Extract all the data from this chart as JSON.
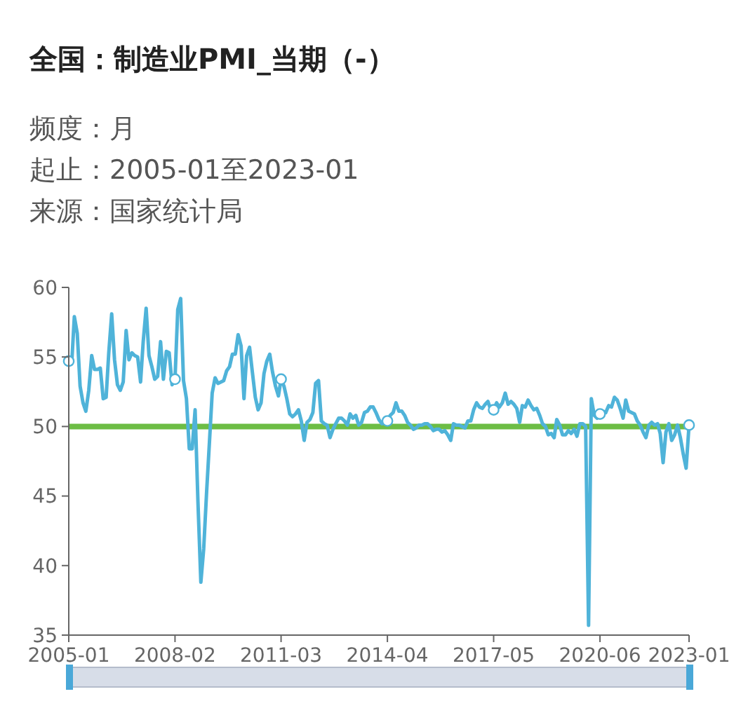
{
  "chart_data": {
    "type": "line",
    "title": "全国：制造业PMI_当期（-）",
    "subtitle": "频度：月",
    "annotations": [
      "起止：2005-01至2023-01",
      "来源：国家统计局"
    ],
    "x": [
      "2005-01",
      "2005-02",
      "2005-03",
      "2005-04",
      "2005-05",
      "2005-06",
      "2005-07",
      "2005-08",
      "2005-09",
      "2005-10",
      "2005-11",
      "2005-12",
      "2006-01",
      "2006-02",
      "2006-03",
      "2006-04",
      "2006-05",
      "2006-06",
      "2006-07",
      "2006-08",
      "2006-09",
      "2006-10",
      "2006-11",
      "2006-12",
      "2007-01",
      "2007-02",
      "2007-03",
      "2007-04",
      "2007-05",
      "2007-06",
      "2007-07",
      "2007-08",
      "2007-09",
      "2007-10",
      "2007-11",
      "2007-12",
      "2008-01",
      "2008-02",
      "2008-03",
      "2008-04",
      "2008-05",
      "2008-06",
      "2008-07",
      "2008-08",
      "2008-09",
      "2008-10",
      "2008-11",
      "2008-12",
      "2009-01",
      "2009-02",
      "2009-03",
      "2009-04",
      "2009-05",
      "2009-06",
      "2009-07",
      "2009-08",
      "2009-09",
      "2009-10",
      "2009-11",
      "2009-12",
      "2010-01",
      "2010-02",
      "2010-03",
      "2010-04",
      "2010-05",
      "2010-06",
      "2010-07",
      "2010-08",
      "2010-09",
      "2010-10",
      "2010-11",
      "2010-12",
      "2011-01",
      "2011-02",
      "2011-03",
      "2011-04",
      "2011-05",
      "2011-06",
      "2011-07",
      "2011-08",
      "2011-09",
      "2011-10",
      "2011-11",
      "2011-12",
      "2012-01",
      "2012-02",
      "2012-03",
      "2012-04",
      "2012-05",
      "2012-06",
      "2012-07",
      "2012-08",
      "2012-09",
      "2012-10",
      "2012-11",
      "2012-12",
      "2013-01",
      "2013-02",
      "2013-03",
      "2013-04",
      "2013-05",
      "2013-06",
      "2013-07",
      "2013-08",
      "2013-09",
      "2013-10",
      "2013-11",
      "2013-12",
      "2014-01",
      "2014-02",
      "2014-03",
      "2014-04",
      "2014-05",
      "2014-06",
      "2014-07",
      "2014-08",
      "2014-09",
      "2014-10",
      "2014-11",
      "2014-12",
      "2015-01",
      "2015-02",
      "2015-03",
      "2015-04",
      "2015-05",
      "2015-06",
      "2015-07",
      "2015-08",
      "2015-09",
      "2015-10",
      "2015-11",
      "2015-12",
      "2016-01",
      "2016-02",
      "2016-03",
      "2016-04",
      "2016-05",
      "2016-06",
      "2016-07",
      "2016-08",
      "2016-09",
      "2016-10",
      "2016-11",
      "2016-12",
      "2017-01",
      "2017-02",
      "2017-03",
      "2017-04",
      "2017-05",
      "2017-06",
      "2017-07",
      "2017-08",
      "2017-09",
      "2017-10",
      "2017-11",
      "2017-12",
      "2018-01",
      "2018-02",
      "2018-03",
      "2018-04",
      "2018-05",
      "2018-06",
      "2018-07",
      "2018-08",
      "2018-09",
      "2018-10",
      "2018-11",
      "2018-12",
      "2019-01",
      "2019-02",
      "2019-03",
      "2019-04",
      "2019-05",
      "2019-06",
      "2019-07",
      "2019-08",
      "2019-09",
      "2019-10",
      "2019-11",
      "2019-12",
      "2020-01",
      "2020-02",
      "2020-03",
      "2020-04",
      "2020-05",
      "2020-06",
      "2020-07",
      "2020-08",
      "2020-09",
      "2020-10",
      "2020-11",
      "2020-12",
      "2021-01",
      "2021-02",
      "2021-03",
      "2021-04",
      "2021-05",
      "2021-06",
      "2021-07",
      "2021-08",
      "2021-09",
      "2021-10",
      "2021-11",
      "2021-12",
      "2022-01",
      "2022-02",
      "2022-03",
      "2022-04",
      "2022-05",
      "2022-06",
      "2022-07",
      "2022-08",
      "2022-09",
      "2022-10",
      "2022-11",
      "2022-12",
      "2023-01"
    ],
    "series": [
      {
        "color": "#4fb3d9",
        "values": [
          54.7,
          54.5,
          57.9,
          56.7,
          52.9,
          51.7,
          51.1,
          52.6,
          55.1,
          54.1,
          54.1,
          54.2,
          52.0,
          52.1,
          55.3,
          58.1,
          54.8,
          53.0,
          52.6,
          53.2,
          56.9,
          54.8,
          55.3,
          55.1,
          55.0,
          53.2,
          56.1,
          58.5,
          55.1,
          54.3,
          53.4,
          53.6,
          56.1,
          53.4,
          55.4,
          55.3,
          53.0,
          53.4,
          58.4,
          59.2,
          53.3,
          52.0,
          48.4,
          48.4,
          51.2,
          44.6,
          38.8,
          41.2,
          45.3,
          49.0,
          52.4,
          53.5,
          53.1,
          53.2,
          53.3,
          54.0,
          54.3,
          55.2,
          55.2,
          56.6,
          55.8,
          52.0,
          55.1,
          55.7,
          53.9,
          52.1,
          51.2,
          51.7,
          53.8,
          54.7,
          55.2,
          53.9,
          52.9,
          52.2,
          53.4,
          52.9,
          52.0,
          50.9,
          50.7,
          50.9,
          51.2,
          50.4,
          49.0,
          50.3,
          50.5,
          51.0,
          53.1,
          53.3,
          50.4,
          50.2,
          50.1,
          49.2,
          49.8,
          50.2,
          50.6,
          50.6,
          50.4,
          50.1,
          50.9,
          50.6,
          50.8,
          50.1,
          50.3,
          51.0,
          51.1,
          51.4,
          51.4,
          51.0,
          50.5,
          50.2,
          50.3,
          50.4,
          50.8,
          51.0,
          51.7,
          51.1,
          51.1,
          50.8,
          50.3,
          50.1,
          49.8,
          49.9,
          50.1,
          50.1,
          50.2,
          50.2,
          50.0,
          49.7,
          49.8,
          49.8,
          49.6,
          49.7,
          49.4,
          49.0,
          50.2,
          50.1,
          50.1,
          50.0,
          49.9,
          50.4,
          50.4,
          51.2,
          51.7,
          51.4,
          51.3,
          51.6,
          51.8,
          51.2,
          51.2,
          51.7,
          51.4,
          51.7,
          52.4,
          51.6,
          51.8,
          51.6,
          51.3,
          50.3,
          51.5,
          51.4,
          51.9,
          51.5,
          51.2,
          51.3,
          50.8,
          50.2,
          50.0,
          49.4,
          49.5,
          49.2,
          50.5,
          50.1,
          49.4,
          49.4,
          49.7,
          49.5,
          49.8,
          49.3,
          50.2,
          50.2,
          50.0,
          35.7,
          52.0,
          50.8,
          50.6,
          50.9,
          51.1,
          51.0,
          51.5,
          51.4,
          52.1,
          51.9,
          51.3,
          50.6,
          51.9,
          51.1,
          51.0,
          50.9,
          50.4,
          50.1,
          49.6,
          49.2,
          50.1,
          50.3,
          50.1,
          50.2,
          49.5,
          47.4,
          49.6,
          50.2,
          49.0,
          49.4,
          50.1,
          49.2,
          48.0,
          47.0,
          50.1
        ]
      },
      {
        "type": "scatter",
        "color": "#4fb3d9",
        "marker": "circle",
        "x": [
          "2005-01",
          "2008-02",
          "2011-03",
          "2014-04",
          "2017-05",
          "2020-06",
          "2023-01"
        ],
        "values": [
          54.7,
          53.4,
          53.4,
          50.4,
          51.2,
          50.9,
          50.1
        ]
      }
    ],
    "xlim": [
      "2005-01",
      "2023-01"
    ],
    "xticks": [
      "2005-01",
      "2008-02",
      "2011-03",
      "2014-04",
      "2017-05",
      "2020-06",
      "2023-01"
    ],
    "ylim": [
      35,
      60
    ],
    "yticks": [
      35,
      40,
      45,
      50,
      55,
      60
    ],
    "ref_lines": [
      {
        "axis": "y",
        "value": 50,
        "color": "#6cbd45"
      }
    ]
  }
}
